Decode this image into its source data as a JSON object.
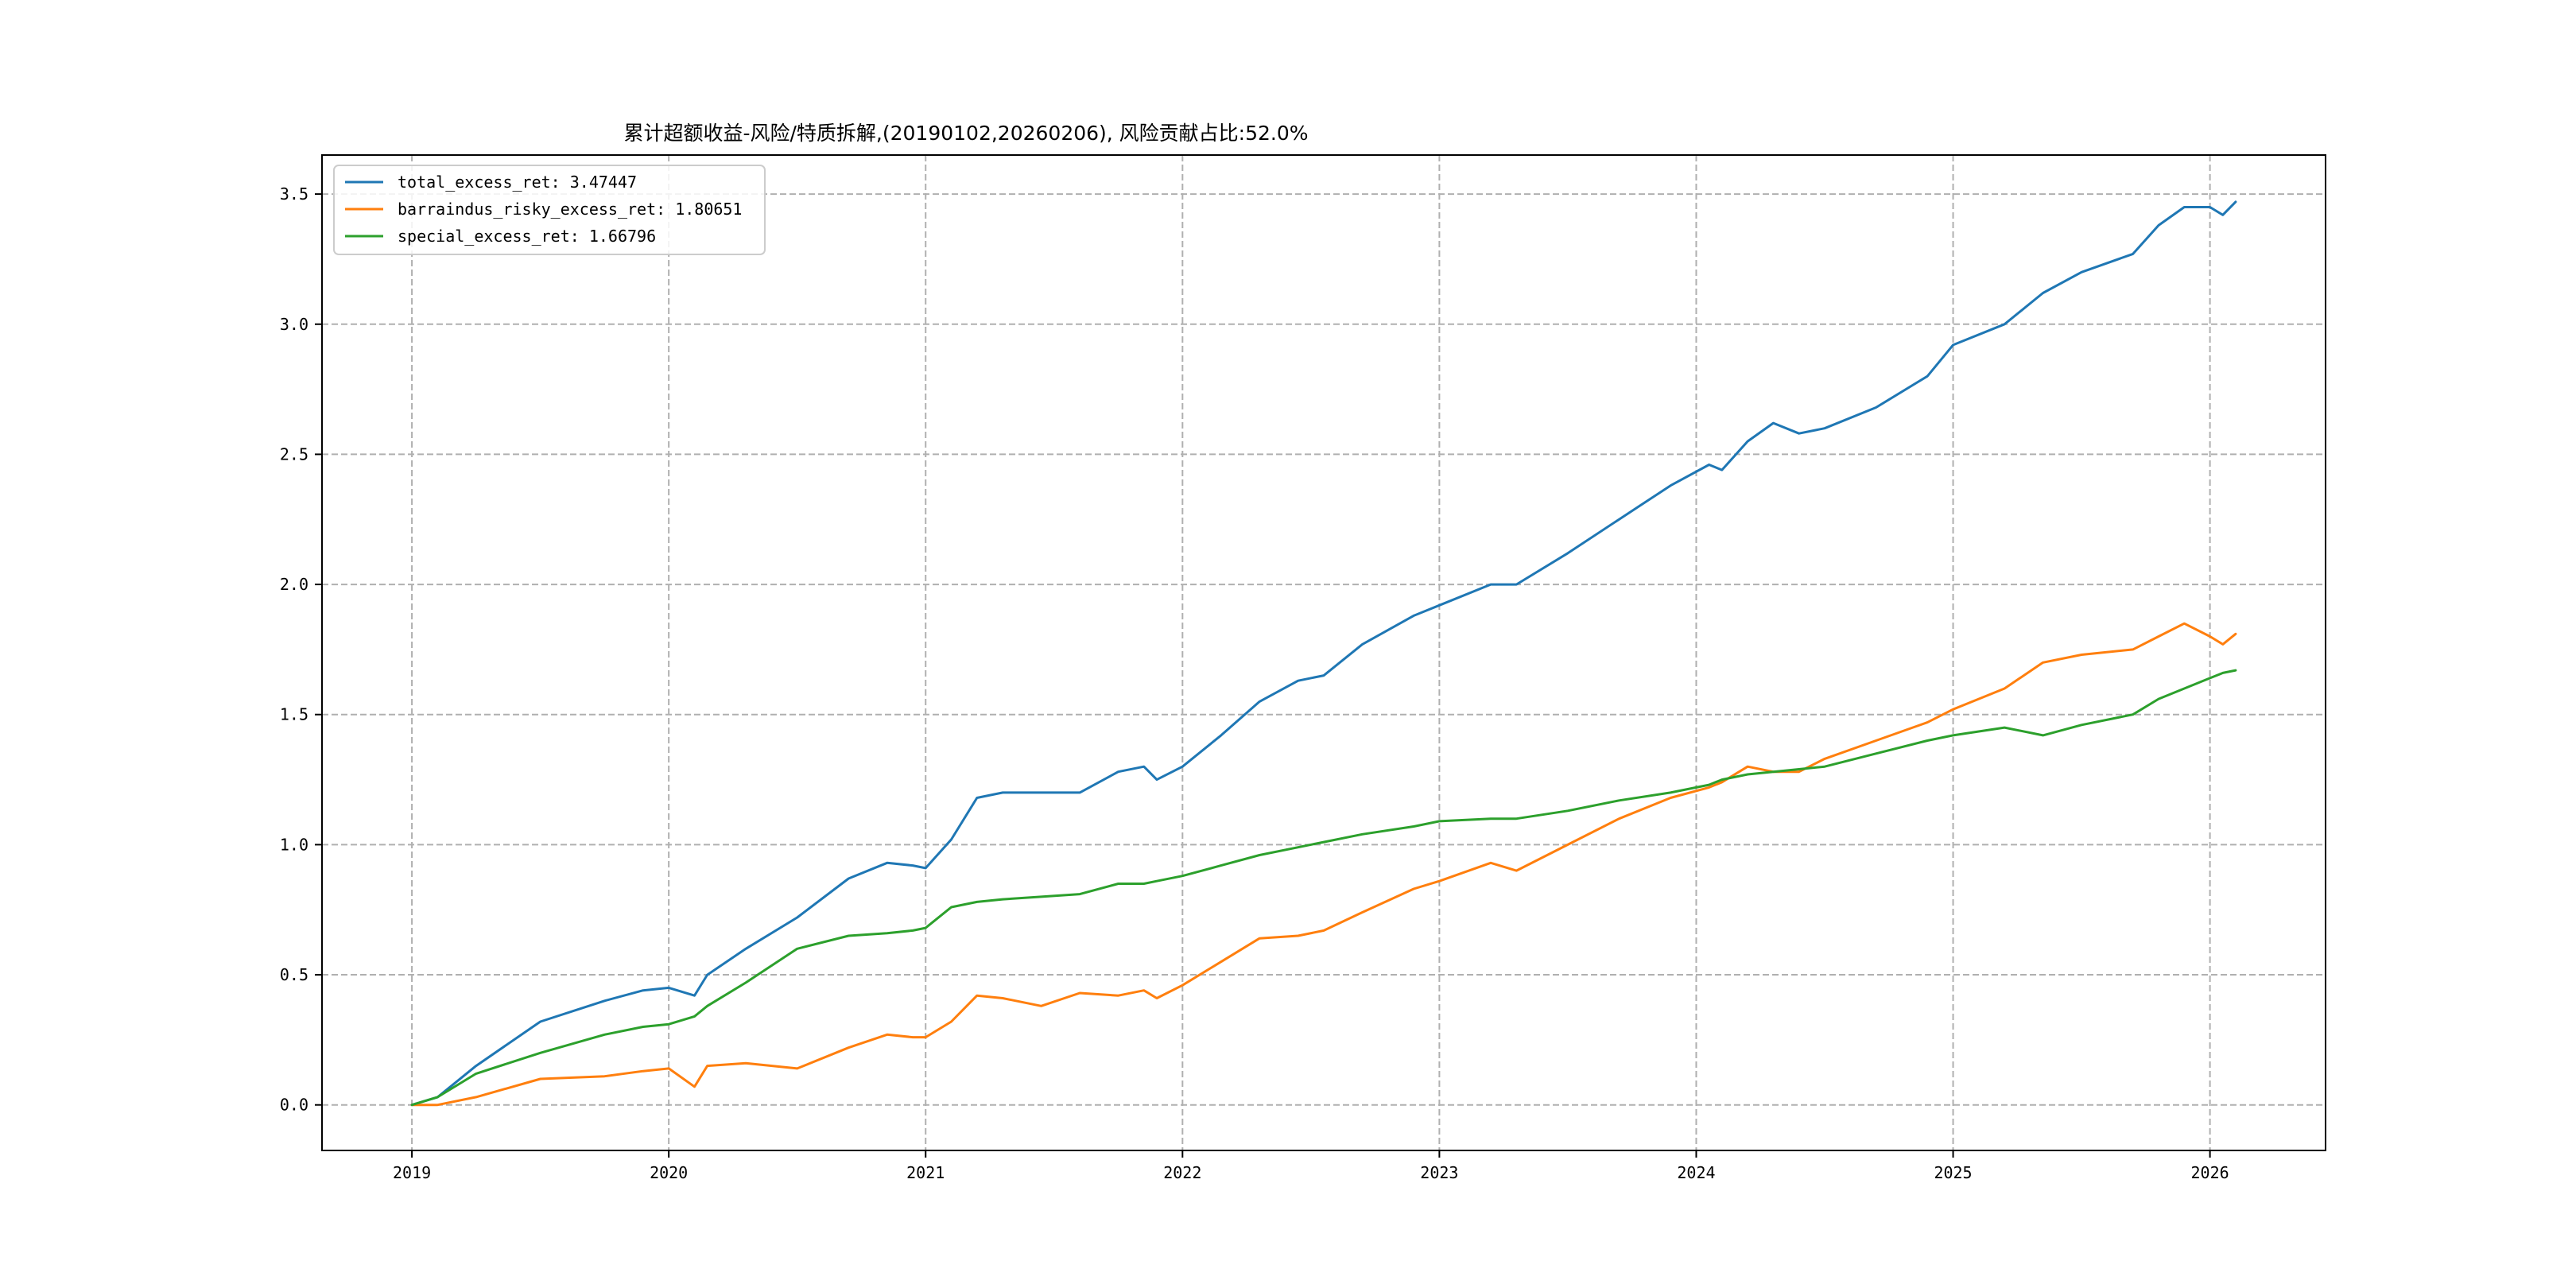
{
  "chart_data": {
    "type": "line",
    "title": "累计超额收益-风险/特质拆解,(20190102,20260206), 风险贡献占比:52.0%",
    "xlabel": "",
    "ylabel": "",
    "xlim": [
      2018.65,
      2026.45
    ],
    "ylim": [
      -0.175,
      3.65
    ],
    "x_ticks": [
      "2019",
      "2020",
      "2021",
      "2022",
      "2023",
      "2024",
      "2025",
      "2026"
    ],
    "y_ticks": [
      "0.0",
      "0.5",
      "1.0",
      "1.5",
      "2.0",
      "2.5",
      "3.0",
      "3.5"
    ],
    "grid": true,
    "legend_position": "top-left",
    "x": [
      2019.0,
      2019.1,
      2019.25,
      2019.5,
      2019.75,
      2019.9,
      2020.0,
      2020.1,
      2020.15,
      2020.3,
      2020.5,
      2020.7,
      2020.85,
      2020.95,
      2021.0,
      2021.1,
      2021.2,
      2021.3,
      2021.45,
      2021.6,
      2021.75,
      2021.85,
      2021.9,
      2022.0,
      2022.15,
      2022.3,
      2022.45,
      2022.55,
      2022.7,
      2022.9,
      2023.0,
      2023.2,
      2023.3,
      2023.5,
      2023.7,
      2023.9,
      2024.05,
      2024.1,
      2024.2,
      2024.3,
      2024.4,
      2024.5,
      2024.7,
      2024.9,
      2025.0,
      2025.2,
      2025.35,
      2025.5,
      2025.7,
      2025.8,
      2025.9,
      2026.0,
      2026.05,
      2026.1
    ],
    "series": [
      {
        "name": "total_excess_ret: 3.47447",
        "color": "#1f77b4",
        "values": [
          0.0,
          0.03,
          0.15,
          0.32,
          0.4,
          0.44,
          0.45,
          0.42,
          0.5,
          0.6,
          0.72,
          0.87,
          0.93,
          0.92,
          0.91,
          1.02,
          1.18,
          1.2,
          1.2,
          1.2,
          1.28,
          1.3,
          1.25,
          1.3,
          1.42,
          1.55,
          1.63,
          1.65,
          1.77,
          1.88,
          1.92,
          2.0,
          2.0,
          2.12,
          2.25,
          2.38,
          2.46,
          2.44,
          2.55,
          2.62,
          2.58,
          2.6,
          2.68,
          2.8,
          2.92,
          3.0,
          3.12,
          3.2,
          3.27,
          3.38,
          3.45,
          3.45,
          3.42,
          3.47
        ]
      },
      {
        "name": "barraindus_risky_excess_ret: 1.80651",
        "color": "#ff7f0e",
        "values": [
          0.0,
          0.0,
          0.03,
          0.1,
          0.11,
          0.13,
          0.14,
          0.07,
          0.15,
          0.16,
          0.14,
          0.22,
          0.27,
          0.26,
          0.26,
          0.32,
          0.42,
          0.41,
          0.38,
          0.43,
          0.42,
          0.44,
          0.41,
          0.46,
          0.55,
          0.64,
          0.65,
          0.67,
          0.74,
          0.83,
          0.86,
          0.93,
          0.9,
          1.0,
          1.1,
          1.18,
          1.22,
          1.24,
          1.3,
          1.28,
          1.28,
          1.33,
          1.4,
          1.47,
          1.52,
          1.6,
          1.7,
          1.73,
          1.75,
          1.8,
          1.85,
          1.8,
          1.77,
          1.81
        ]
      },
      {
        "name": "special_excess_ret: 1.66796",
        "color": "#2ca02c",
        "values": [
          0.0,
          0.03,
          0.12,
          0.2,
          0.27,
          0.3,
          0.31,
          0.34,
          0.38,
          0.47,
          0.6,
          0.65,
          0.66,
          0.67,
          0.68,
          0.76,
          0.78,
          0.79,
          0.8,
          0.81,
          0.85,
          0.85,
          0.86,
          0.88,
          0.92,
          0.96,
          0.99,
          1.01,
          1.04,
          1.07,
          1.09,
          1.1,
          1.1,
          1.13,
          1.17,
          1.2,
          1.23,
          1.25,
          1.27,
          1.28,
          1.29,
          1.3,
          1.35,
          1.4,
          1.42,
          1.45,
          1.42,
          1.46,
          1.5,
          1.56,
          1.6,
          1.64,
          1.66,
          1.67
        ]
      }
    ]
  }
}
